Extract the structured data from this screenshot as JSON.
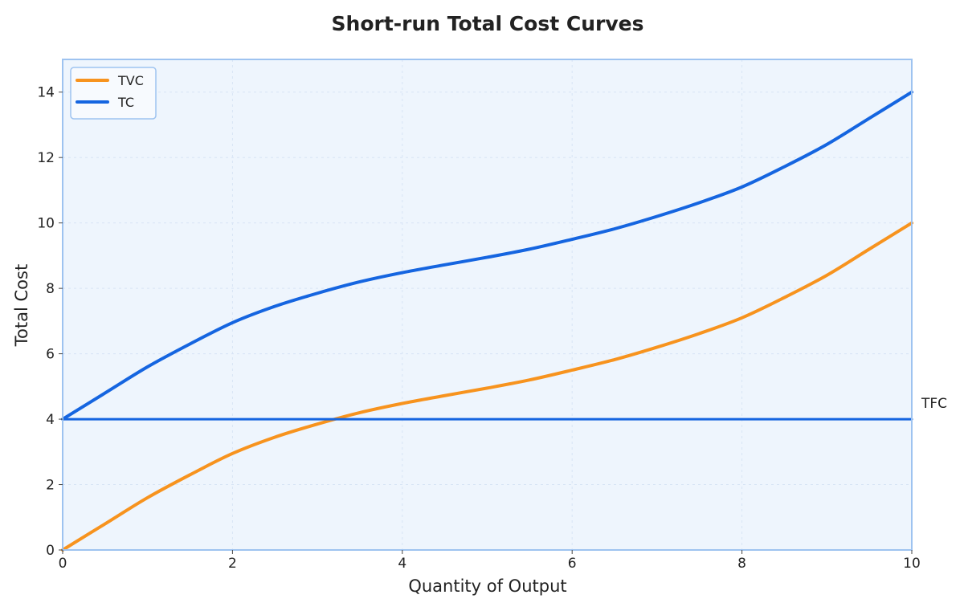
{
  "chart_data": {
    "type": "line",
    "title": "Short-run Total Cost Curves",
    "xlabel": "Quantity of Output",
    "ylabel": "Total Cost",
    "xlim": [
      0,
      10
    ],
    "ylim": [
      0,
      15
    ],
    "xticks": [
      0,
      2,
      4,
      6,
      8,
      10
    ],
    "yticks": [
      0,
      2,
      4,
      6,
      8,
      10,
      12,
      14
    ],
    "grid": true,
    "legend_position": "top-left",
    "colors": {
      "tvc": "#F7931E",
      "tc": "#1565E0",
      "tfc": "#1565E0",
      "plot_bg": "#EEF5FD",
      "frame": "#9EC3F0"
    },
    "series": [
      {
        "name": "TVC",
        "x": [
          0,
          0.5,
          1,
          1.5,
          2,
          2.5,
          3,
          3.5,
          4,
          4.5,
          5,
          5.5,
          6,
          6.5,
          7,
          7.5,
          8,
          8.5,
          9,
          9.5,
          10
        ],
        "y": [
          0,
          0.8,
          1.6,
          2.3,
          2.95,
          3.45,
          3.85,
          4.2,
          4.48,
          4.72,
          4.95,
          5.2,
          5.5,
          5.82,
          6.2,
          6.62,
          7.1,
          7.72,
          8.4,
          9.2,
          10
        ]
      },
      {
        "name": "TC",
        "x": [
          0,
          0.5,
          1,
          1.5,
          2,
          2.5,
          3,
          3.5,
          4,
          4.5,
          5,
          5.5,
          6,
          6.5,
          7,
          7.5,
          8,
          8.5,
          9,
          9.5,
          10
        ],
        "y": [
          4,
          4.8,
          5.6,
          6.3,
          6.95,
          7.45,
          7.85,
          8.2,
          8.48,
          8.72,
          8.95,
          9.2,
          9.5,
          9.82,
          10.2,
          10.62,
          11.1,
          11.72,
          12.4,
          13.2,
          14
        ]
      },
      {
        "x": [
          0,
          10
        ],
        "y": [
          4,
          4
        ]
      }
    ],
    "annotations": [
      {
        "text": "TFC",
        "x": 10,
        "y": 4
      }
    ]
  }
}
